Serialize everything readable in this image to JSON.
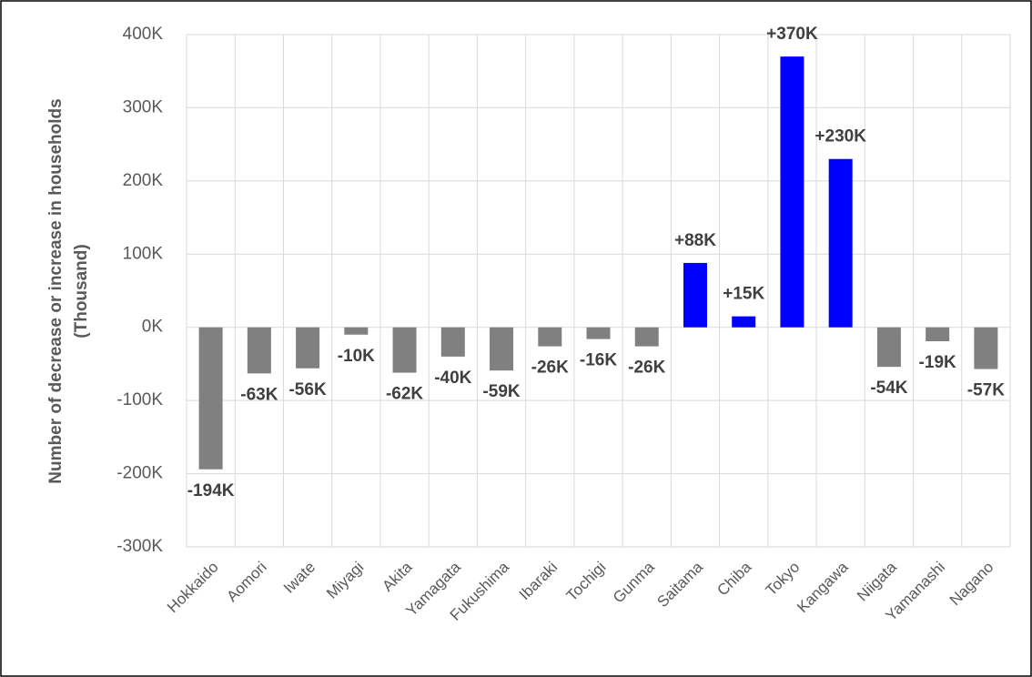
{
  "chart_data": {
    "type": "bar",
    "ylabel": [
      "Number of decrease or increase in households",
      "(Thousand)"
    ],
    "categories": [
      "Hokkaido",
      "Aomori",
      "Iwate",
      "Miyagi",
      "Akita",
      "Yamagata",
      "Fukushima",
      "Ibaraki",
      "Tochigi",
      "Gunma",
      "Saitama",
      "Chiba",
      "Tokyo",
      "Kangawa",
      "Niigata",
      "Yamanashi",
      "Nagano"
    ],
    "values": [
      -194,
      -63,
      -56,
      -10,
      -62,
      -40,
      -59,
      -26,
      -16,
      -26,
      88,
      15,
      370,
      230,
      -54,
      -19,
      -57
    ],
    "value_labels": [
      "-194K",
      "-63K",
      "-56K",
      "-10K",
      "-62K",
      "-40K",
      "-59K",
      "-26K",
      "-16K",
      "-26K",
      "+88K",
      "+15K",
      "+370K",
      "+230K",
      "-54K",
      "-19K",
      "-57K"
    ],
    "colors": [
      "#808080",
      "#808080",
      "#808080",
      "#808080",
      "#808080",
      "#808080",
      "#808080",
      "#808080",
      "#808080",
      "#808080",
      "#0000ff",
      "#0000ff",
      "#0000ff",
      "#0000ff",
      "#808080",
      "#808080",
      "#808080"
    ],
    "ylim": [
      -300,
      400
    ],
    "yticks": [
      {
        "value": -300,
        "label": "-300K"
      },
      {
        "value": -200,
        "label": "-200K"
      },
      {
        "value": -100,
        "label": "-100K"
      },
      {
        "value": 0,
        "label": "0K"
      },
      {
        "value": 100,
        "label": "100K"
      },
      {
        "value": 200,
        "label": "200K"
      },
      {
        "value": 300,
        "label": "300K"
      },
      {
        "value": 400,
        "label": "400K"
      }
    ],
    "grid": true
  }
}
